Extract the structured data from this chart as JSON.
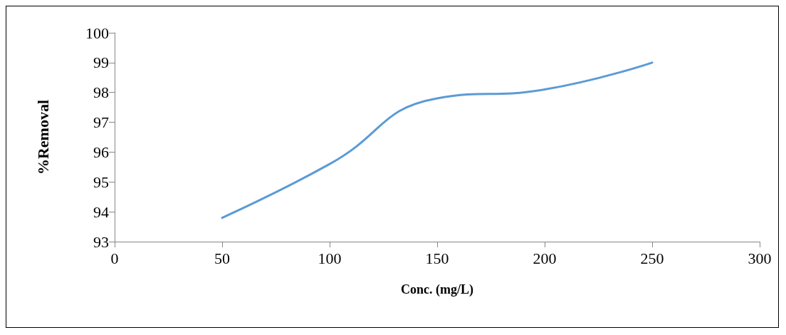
{
  "chart_data": {
    "type": "line",
    "xlabel": "Conc. (mg/L)",
    "ylabel": "%Removal",
    "x": [
      50,
      100,
      150,
      200,
      250
    ],
    "series": [
      {
        "color": "#5b9bd5",
        "values": [
          93.8,
          95.6,
          97.8,
          98.1,
          99.0
        ]
      }
    ],
    "xlim": [
      0,
      300
    ],
    "xticks": [
      0,
      50,
      100,
      150,
      200,
      250,
      300
    ],
    "ylim": [
      93,
      100
    ],
    "yticks": [
      93,
      94,
      95,
      96,
      97,
      98,
      99,
      100
    ],
    "marker": "none",
    "line_style": "solid"
  }
}
